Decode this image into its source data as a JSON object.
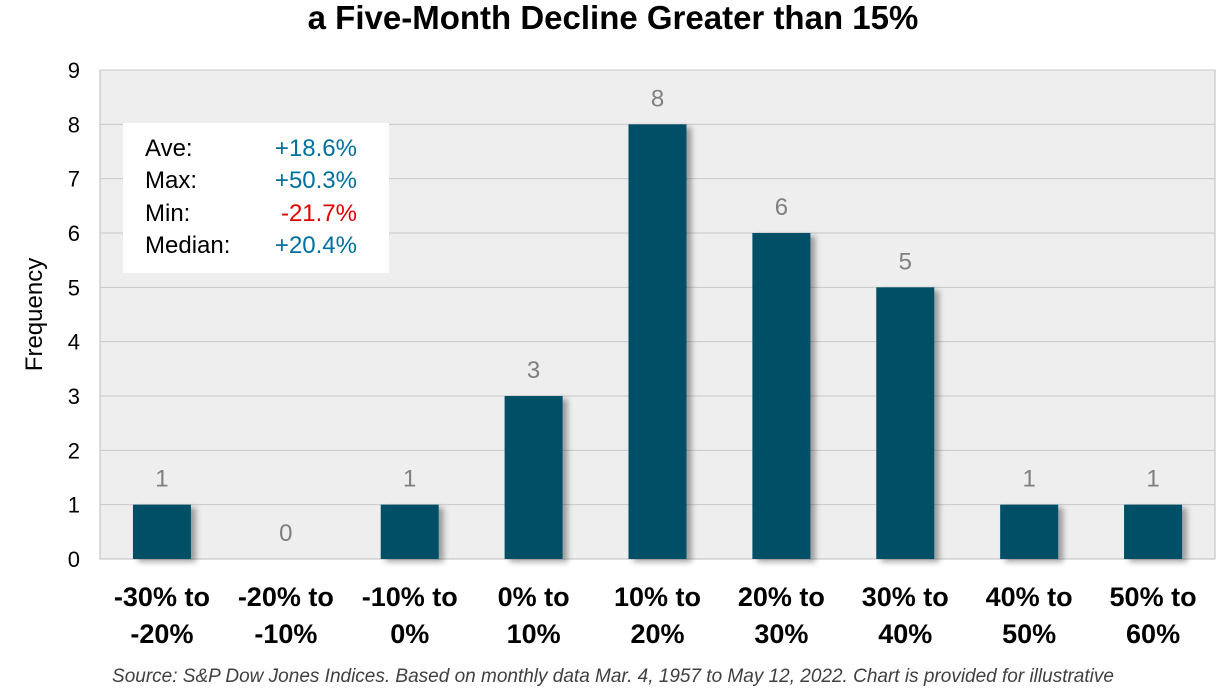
{
  "title": "a Five-Month Decline Greater than 15%",
  "source": "Source: S&P Dow Jones Indices.  Based on monthly data Mar. 4, 1957 to May 12, 2022.  Chart is provided for illustrative",
  "stats": [
    {
      "label": "Ave:",
      "value": "+18.6%",
      "color": "#0070a0"
    },
    {
      "label": "Max:",
      "value": "+50.3%",
      "color": "#0070a0"
    },
    {
      "label": "Min:",
      "value": "-21.7%",
      "color": "#e00000"
    },
    {
      "label": "Median:",
      "value": "+20.4%",
      "color": "#0070a0"
    }
  ],
  "colors": {
    "bar": "#004f66",
    "plot_bg": "#eeeeee",
    "grid": "#c8c8c8",
    "data_label": "#7f7f7f"
  },
  "chart_data": {
    "type": "bar",
    "title": "a Five-Month Decline Greater than 15%",
    "ylabel": "Frequency",
    "xlabel": "",
    "ylim": [
      0,
      9
    ],
    "yticks": [
      0,
      1,
      2,
      3,
      4,
      5,
      6,
      7,
      8,
      9
    ],
    "grid": true,
    "categories": [
      [
        "-30% to",
        "-20%"
      ],
      [
        "-20% to",
        "-10%"
      ],
      [
        "-10% to",
        "0%"
      ],
      [
        "0% to",
        "10%"
      ],
      [
        "10% to",
        "20%"
      ],
      [
        "20% to",
        "30%"
      ],
      [
        "30% to",
        "40%"
      ],
      [
        "40% to",
        "50%"
      ],
      [
        "50% to",
        "60%"
      ]
    ],
    "values": [
      1,
      0,
      1,
      3,
      8,
      6,
      5,
      1,
      1
    ]
  }
}
